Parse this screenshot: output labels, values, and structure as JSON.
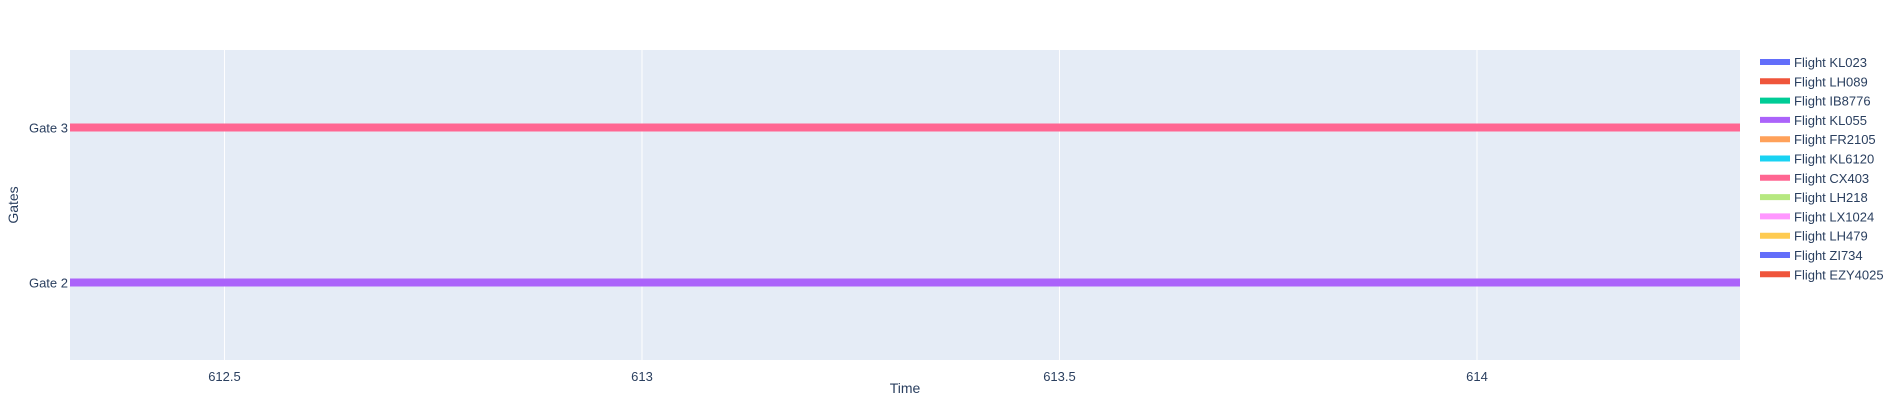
{
  "chart_data": {
    "type": "timeline",
    "title": "",
    "xlabel": "Time",
    "ylabel": "Gates",
    "xlim": [
      612.315,
      614.315
    ],
    "x_ticks": [
      612.5,
      613,
      613.5,
      614
    ],
    "x_tick_labels": [
      "612.5",
      "613",
      "613.5",
      "614"
    ],
    "categories": [
      "Gate 2",
      "Gate 3"
    ],
    "grid": true,
    "legend_position": "right",
    "series": [
      {
        "name": "Flight KL023",
        "color": "#636efa",
        "gate": "",
        "x": []
      },
      {
        "name": "Flight LH089",
        "color": "#EF553B",
        "gate": "",
        "x": []
      },
      {
        "name": "Flight IB8776",
        "color": "#00cc96",
        "gate": "",
        "x": []
      },
      {
        "name": "Flight KL055",
        "color": "#ab63fa",
        "gate": "Gate 2",
        "x": [
          612.315,
          614.315
        ]
      },
      {
        "name": "Flight FR2105",
        "color": "#FFA15A",
        "gate": "",
        "x": []
      },
      {
        "name": "Flight KL6120",
        "color": "#19d3f3",
        "gate": "",
        "x": []
      },
      {
        "name": "Flight CX403",
        "color": "#FF6692",
        "gate": "Gate 3",
        "x": [
          612.315,
          614.315
        ]
      },
      {
        "name": "Flight LH218",
        "color": "#B6E880",
        "gate": "",
        "x": []
      },
      {
        "name": "Flight LX1024",
        "color": "#FF97FF",
        "gate": "",
        "x": []
      },
      {
        "name": "Flight LH479",
        "color": "#FECB52",
        "gate": "",
        "x": []
      },
      {
        "name": "Flight ZI734",
        "color": "#636efa",
        "gate": "",
        "x": []
      },
      {
        "name": "Flight EZY4025",
        "color": "#EF553B",
        "gate": "",
        "x": []
      }
    ]
  }
}
